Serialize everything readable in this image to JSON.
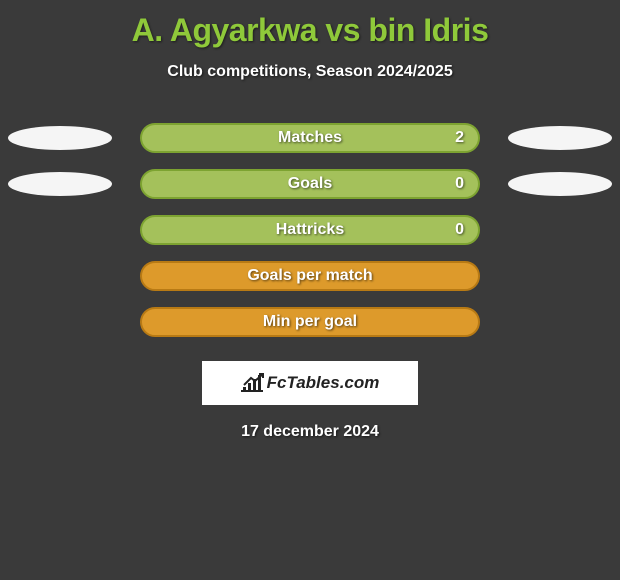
{
  "title": "A. Agyarkwa vs bin Idris",
  "subtitle": "Club competitions, Season 2024/2025",
  "date": "17 december 2024",
  "brand": "FcTables.com",
  "colors": {
    "background": "#3a3a3a",
    "title": "#8fc93a",
    "text": "#ffffff",
    "ellipse": "#f5f5f5",
    "brand_box": "#ffffff",
    "brand_text": "#222222"
  },
  "rows": [
    {
      "label": "Matches",
      "leftEllipse": true,
      "rightEllipse": true,
      "rightValue": "2",
      "barFill": "#a4c15b",
      "barBorder": "#7da331"
    },
    {
      "label": "Goals",
      "leftEllipse": true,
      "rightEllipse": true,
      "rightValue": "0",
      "barFill": "#a4c15b",
      "barBorder": "#7da331"
    },
    {
      "label": "Hattricks",
      "leftEllipse": false,
      "rightEllipse": false,
      "rightValue": "0",
      "barFill": "#a4c15b",
      "barBorder": "#7da331"
    },
    {
      "label": "Goals per match",
      "leftEllipse": false,
      "rightEllipse": false,
      "barFill": "#dd9a2b",
      "barBorder": "#b87a14"
    },
    {
      "label": "Min per goal",
      "leftEllipse": false,
      "rightEllipse": false,
      "barFill": "#dd9a2b",
      "barBorder": "#b87a14"
    }
  ]
}
